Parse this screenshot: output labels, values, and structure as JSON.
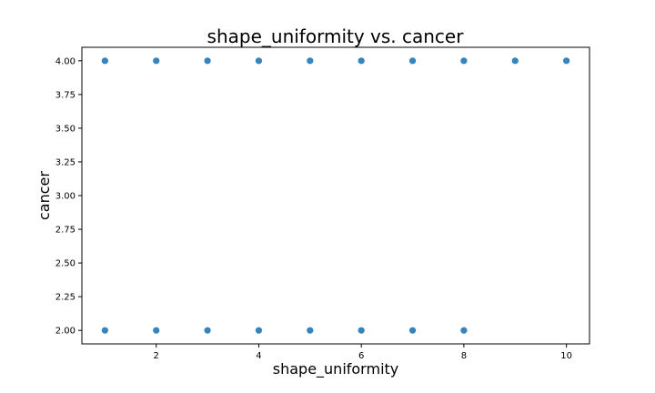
{
  "chart_data": {
    "type": "scatter",
    "title": "shape_uniformity vs. cancer",
    "xlabel": "shape_uniformity",
    "ylabel": "cancer",
    "xlim": [
      0.55,
      10.45
    ],
    "ylim": [
      1.9,
      4.1
    ],
    "xticks": [
      2,
      4,
      6,
      8,
      10
    ],
    "yticks": [
      2.0,
      2.25,
      2.5,
      2.75,
      3.0,
      3.25,
      3.5,
      3.75,
      4.0
    ],
    "ytick_labels": [
      "2.00",
      "2.25",
      "2.50",
      "2.75",
      "3.00",
      "3.25",
      "3.50",
      "3.75",
      "4.00"
    ],
    "xtick_labels": [
      "2",
      "4",
      "6",
      "8",
      "10"
    ],
    "grid": false,
    "marker_color": "#1f77b4",
    "series": [
      {
        "x": [
          1,
          2,
          3,
          4,
          5,
          6,
          7,
          8,
          9,
          10,
          1,
          2,
          3,
          4,
          5,
          6,
          7,
          8
        ],
        "y": [
          4,
          4,
          4,
          4,
          4,
          4,
          4,
          4,
          4,
          4,
          2,
          2,
          2,
          2,
          2,
          2,
          2,
          2
        ]
      }
    ]
  }
}
